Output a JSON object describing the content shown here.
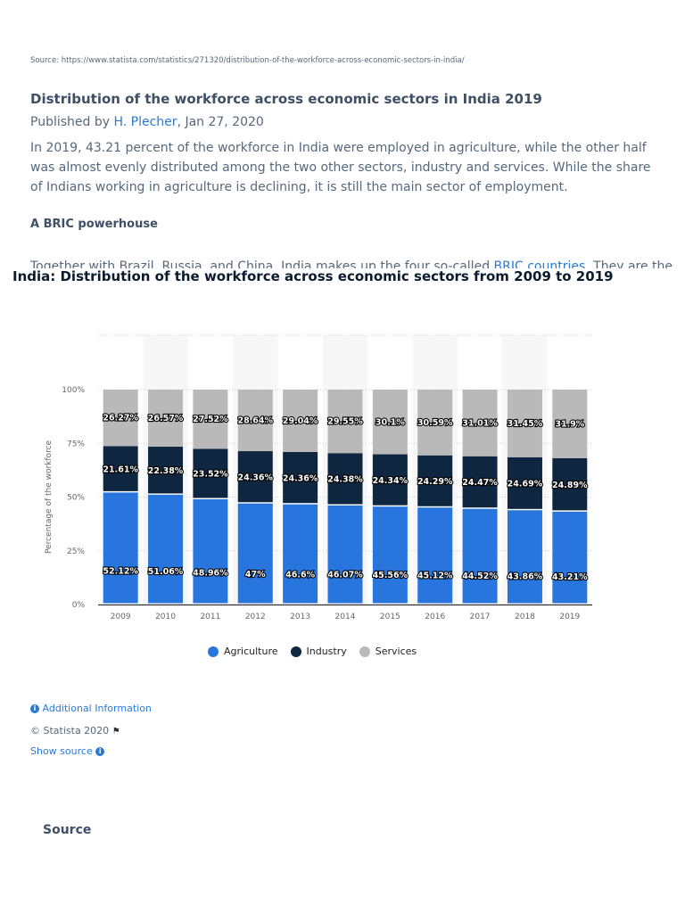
{
  "source_line": "Source: https://www.statista.com/statistics/271320/distribution-of-the-workforce-across-economic-sectors-in-india/",
  "article": {
    "title": "Distribution of the workforce across economic sectors in India 2019",
    "published_prefix": "Published by ",
    "author": "H. Plecher",
    "date": ", Jan 27, 2020",
    "paragraph": "In 2019, 43.21 percent of the workforce in India were employed in agriculture, while the other half was almost evenly distributed among the two other sectors, industry and services. While the share of Indians working in agriculture is declining, it is still the main sector of employment.",
    "subheading": "A BRIC powerhouse",
    "para2_start": "Together with Brazil, Russia, and China, India makes up the four so-called ",
    "para2_link": "BRIC countries",
    "para2_end": ". They are the"
  },
  "chart_data": {
    "type": "bar",
    "stacked": true,
    "title": "India: Distribution of the workforce across economic sectors from 2009 to 2019",
    "xlabel": "",
    "ylabel": "Percentage of the workforce",
    "ylim": [
      0,
      100
    ],
    "yticks": [
      "0%",
      "25%",
      "50%",
      "75%",
      "100%"
    ],
    "grid": true,
    "legend_position": "bottom",
    "categories": [
      "2009",
      "2010",
      "2011",
      "2012",
      "2013",
      "2014",
      "2015",
      "2016",
      "2017",
      "2018",
      "2019"
    ],
    "series": [
      {
        "name": "Agriculture",
        "color": "#2876dd",
        "values": [
          52.12,
          51.06,
          48.96,
          47,
          46.6,
          46.07,
          45.56,
          45.12,
          44.52,
          43.86,
          43.21
        ],
        "labels": [
          "52.12%",
          "51.06%",
          "48.96%",
          "47%",
          "46.6%",
          "46.07%",
          "45.56%",
          "45.12%",
          "44.52%",
          "43.86%",
          "43.21%"
        ]
      },
      {
        "name": "Industry",
        "color": "#0f2640",
        "values": [
          21.61,
          22.38,
          23.52,
          24.36,
          24.36,
          24.38,
          24.34,
          24.29,
          24.47,
          24.69,
          24.89
        ],
        "labels": [
          "21.61%",
          "22.38%",
          "23.52%",
          "24.36%",
          "24.36%",
          "24.38%",
          "24.34%",
          "24.29%",
          "24.47%",
          "24.69%",
          "24.89%"
        ]
      },
      {
        "name": "Services",
        "color": "#b9b9b9",
        "values": [
          26.27,
          26.57,
          27.52,
          28.64,
          29.04,
          29.55,
          30.1,
          30.59,
          31.01,
          31.45,
          31.9
        ],
        "labels": [
          "26.27%",
          "26.57%",
          "27.52%",
          "28.64%",
          "29.04%",
          "29.55%",
          "30.1%",
          "30.59%",
          "31.01%",
          "31.45%",
          "31.9%"
        ]
      }
    ]
  },
  "footer": {
    "additional_info": "Additional Information",
    "copyright": "© Statista 2020",
    "show_source": "Show source",
    "info_glyph": "i",
    "source_heading": "Source"
  }
}
